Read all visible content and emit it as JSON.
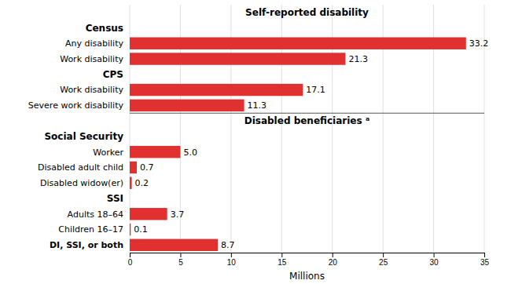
{
  "chart_data": {
    "type": "bar",
    "orientation": "horizontal",
    "categories": [
      "Any disability",
      "Work disability",
      "Work disability",
      "Severe work disability",
      "Worker",
      "Disabled adult child",
      "Disabled widow(er)",
      "Adults 18–64",
      "Children 16–17",
      "DI, SSI, or both"
    ],
    "category_groups": [
      "Census",
      "Census",
      "CPS",
      "CPS",
      "Social Security",
      "Social Security",
      "Social Security",
      "SSI",
      "SSI",
      null
    ],
    "category_sections": [
      "Self-reported disability",
      "Self-reported disability",
      "Self-reported disability",
      "Self-reported disability",
      "Disabled beneficiaries ᵃ",
      "Disabled beneficiaries ᵃ",
      "Disabled beneficiaries ᵃ",
      "Disabled beneficiaries ᵃ",
      "Disabled beneficiaries ᵃ",
      "Disabled beneficiaries ᵃ"
    ],
    "values": [
      33.2,
      21.3,
      17.1,
      11.3,
      5.0,
      0.7,
      0.2,
      3.7,
      0.1,
      8.7
    ],
    "value_labels": [
      "33.2",
      "21.3",
      "17.1",
      "11.3",
      "5.0",
      "0.7",
      "0.2",
      "3.7",
      "0.1",
      "8.7"
    ],
    "data_labels": true,
    "color": "#e03030",
    "xlabel": "Millions",
    "xlim": [
      0,
      35
    ],
    "xticks": [
      0,
      5,
      10,
      15,
      20,
      25,
      30,
      35
    ],
    "grid": true
  }
}
